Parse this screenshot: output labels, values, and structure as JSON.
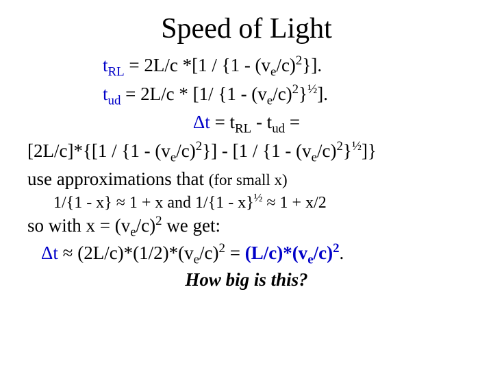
{
  "title": "Speed of Light",
  "colors": {
    "text": "#000000",
    "accent": "#0000c8",
    "background": "#ffffff"
  },
  "fonts": {
    "family": "Times New Roman",
    "title_size_pt": 42,
    "body_size_pt": 27,
    "approx_size_pt": 24,
    "small_size_pt": 23
  },
  "lines": {
    "trl": {
      "lhs": "t",
      "lhs_sub": "RL",
      "rhs": " =  2L/c *[1 / {1 - (v",
      "e": "e",
      "tail": "/c)",
      "p2": "2",
      "end": "}]."
    },
    "tud": {
      "lhs": "t",
      "lhs_sub": "ud",
      "rhs": " =  2L/c * [1/ {1 - (v",
      "e": "e",
      "tail": "/c)",
      "p2": "2",
      "half": "½",
      "end": "]."
    },
    "dt_eq": {
      "sym": "Δ",
      "t": "t",
      "mid": "  =  t",
      "rl": "RL",
      "minus": " - t",
      "ud": "ud",
      "eq": "  ="
    },
    "expand": {
      "a": "[2L/c]*{[1 / {1 - (v",
      "e1": "e",
      "b": "/c)",
      "p1": "2",
      "c": "}] - [1 / {1 - (v",
      "e2": "e",
      "d": "/c)",
      "p2": "2",
      "half": "½",
      "end": "]}"
    },
    "useapprox": {
      "a": "use approximations that ",
      "b": "(for small x)"
    },
    "approx": {
      "t": "1/{1 - x} ≈ 1 + x    and   1/{1 - x}½  ≈ 1 + x/2",
      "a": "1/{1 - x} ≈ 1 + x    and   1/{1 - x}",
      "half": "½",
      "b": "  ≈ 1 + x/2"
    },
    "sowith": {
      "a": "so with x = (v",
      "e": "e",
      "b": "/c)",
      "p": "2",
      "c": "  we get:"
    },
    "result": {
      "sym": "Δ",
      "t": "t",
      "a": "  ≈  (2L/c)*(1/2)*(v",
      "e1": "e",
      "b": "/c)",
      "p1": "2",
      "eq": "   = ",
      "c": "  (L/c)*(v",
      "e2": "e",
      "d": "/c)",
      "p2": "2",
      "dot": "."
    },
    "question": "How big is this?"
  }
}
